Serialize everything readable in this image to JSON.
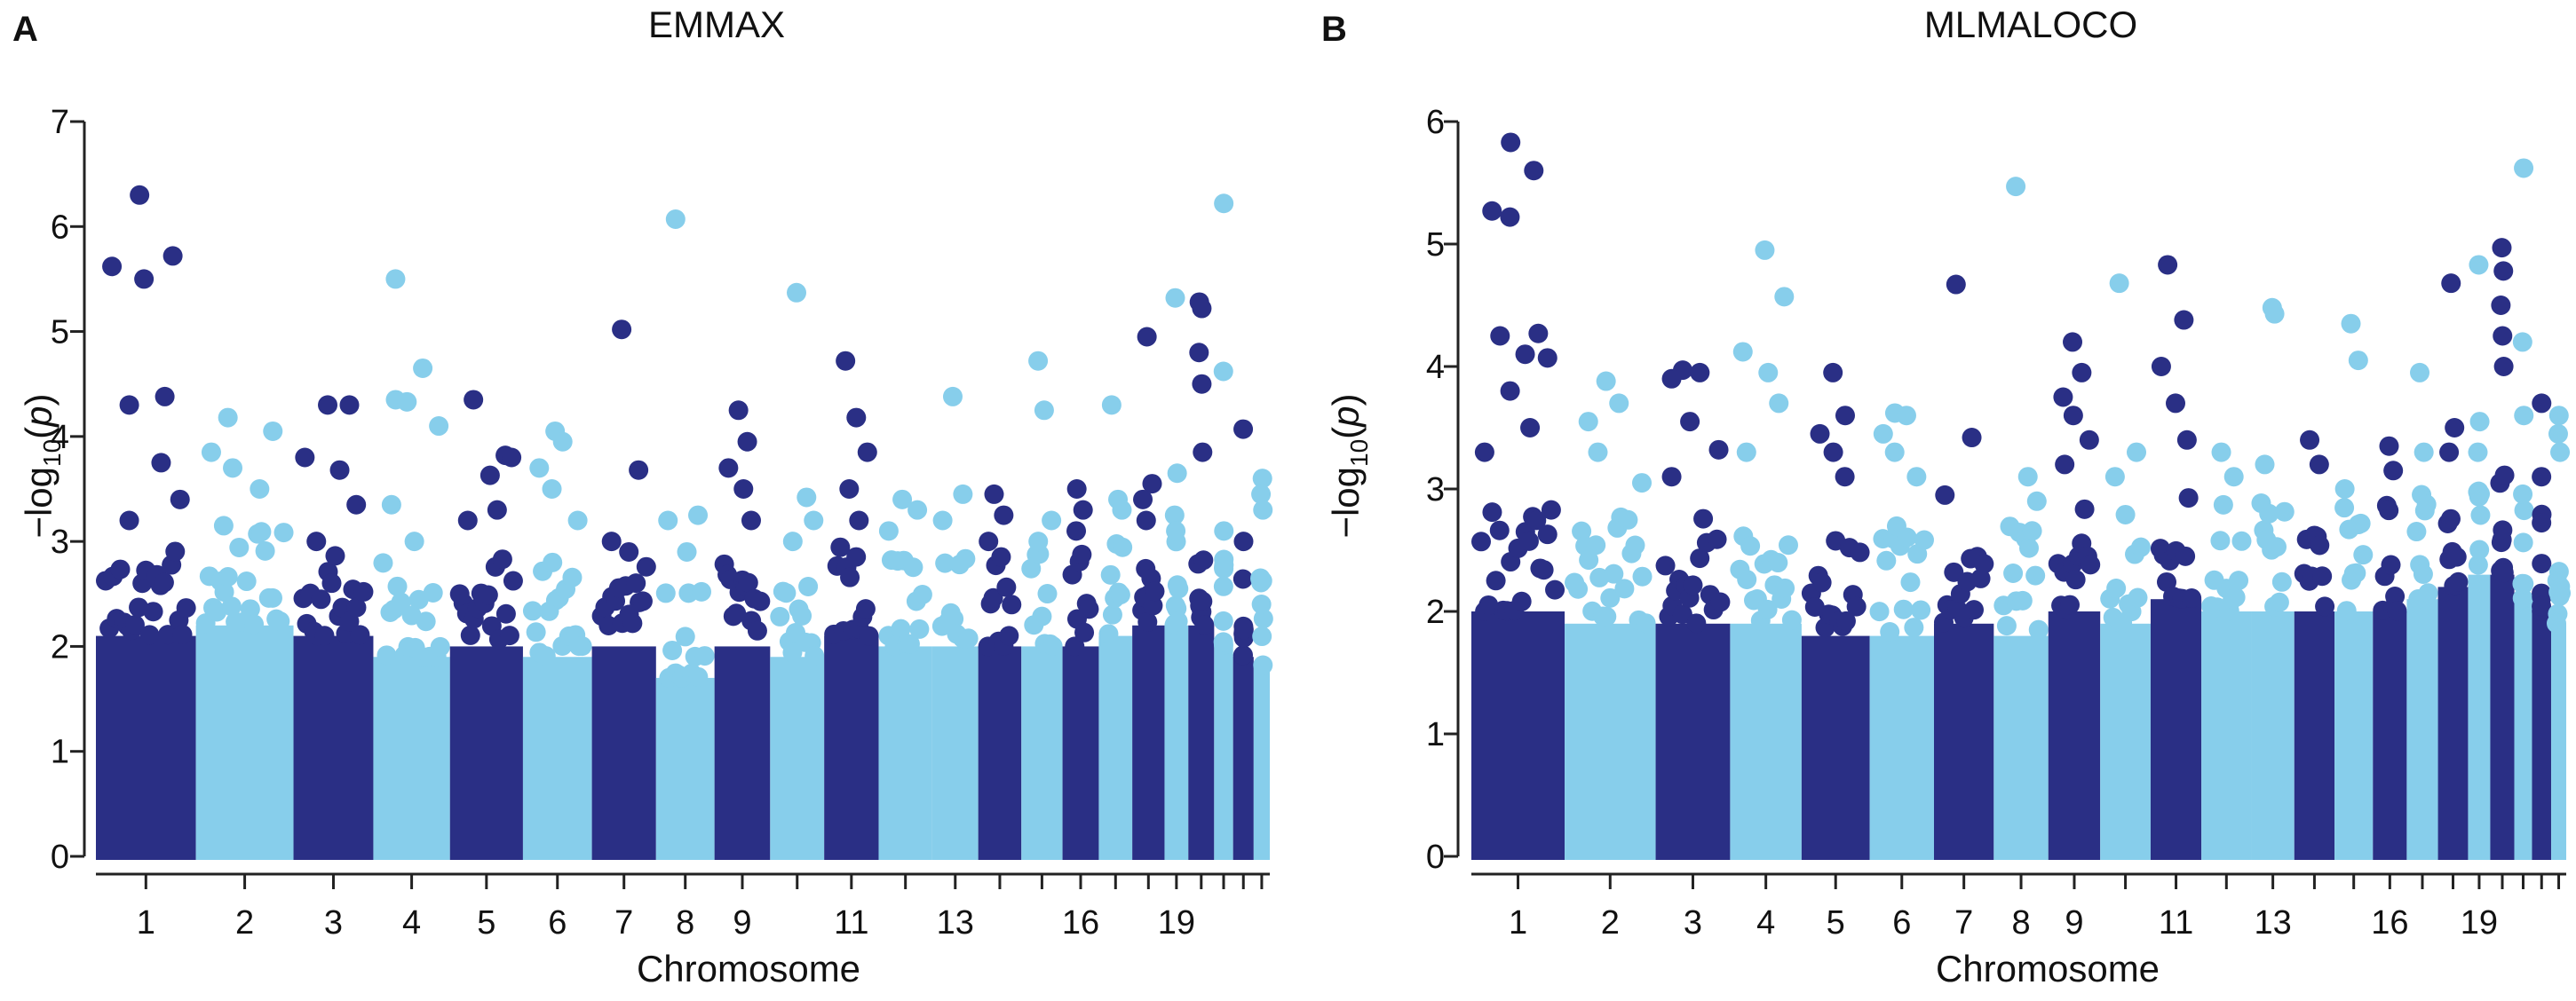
{
  "panels": [
    {
      "letter": "A",
      "title": "EMMAX"
    },
    {
      "letter": "B",
      "title": "MLMALOCO"
    }
  ],
  "colors": {
    "dark": "#2a2f85",
    "light": "#87ceeb",
    "axis": "#222222"
  },
  "chart_data": [
    {
      "type": "scatter",
      "subtype": "manhattan",
      "title": "EMMAX",
      "xlabel": "Chromosome",
      "ylabel": "−log10(p)",
      "ylim": [
        0,
        7
      ],
      "yticks": [
        0,
        1,
        2,
        3,
        4,
        5,
        6,
        7
      ],
      "xtick_labels": [
        "1",
        "2",
        "3",
        "4",
        "5",
        "6",
        "7",
        "8",
        "9",
        "11",
        "13",
        "16",
        "19"
      ],
      "grid": false,
      "legend": "none",
      "chromosomes": [
        {
          "chr": 1,
          "color": "dark",
          "base_max": 2.7,
          "points": [
            6.3,
            5.72,
            5.62,
            5.5,
            4.38,
            4.3,
            3.75,
            3.4,
            3.2
          ]
        },
        {
          "chr": 2,
          "color": "light",
          "base_max": 2.8,
          "points": [
            4.18,
            4.05,
            3.85,
            3.7,
            3.5,
            3.15
          ]
        },
        {
          "chr": 3,
          "color": "dark",
          "base_max": 2.7,
          "points": [
            4.3,
            4.3,
            3.8,
            3.68,
            3.35,
            3.0
          ]
        },
        {
          "chr": 4,
          "color": "light",
          "base_max": 2.5,
          "points": [
            5.5,
            4.65,
            4.35,
            4.33,
            4.1,
            3.35,
            3.0
          ]
        },
        {
          "chr": 5,
          "color": "dark",
          "base_max": 2.6,
          "points": [
            4.35,
            3.82,
            3.8,
            3.63,
            3.3,
            3.2
          ]
        },
        {
          "chr": 6,
          "color": "light",
          "base_max": 2.5,
          "points": [
            4.05,
            3.95,
            3.7,
            3.5,
            3.2
          ]
        },
        {
          "chr": 7,
          "color": "dark",
          "base_max": 2.6,
          "points": [
            5.02,
            3.68,
            3.0,
            2.9
          ]
        },
        {
          "chr": 8,
          "color": "light",
          "base_max": 2.3,
          "points": [
            6.07,
            3.25,
            3.2,
            2.9
          ]
        },
        {
          "chr": 9,
          "color": "dark",
          "base_max": 2.6,
          "points": [
            4.25,
            3.95,
            3.7,
            3.5,
            3.2
          ]
        },
        {
          "chr": 10,
          "color": "light",
          "base_max": 2.5,
          "points": [
            5.37,
            3.42,
            3.2,
            3.0
          ]
        },
        {
          "chr": 11,
          "color": "dark",
          "base_max": 2.7,
          "points": [
            4.72,
            4.18,
            3.85,
            3.5,
            3.2
          ]
        },
        {
          "chr": 12,
          "color": "light",
          "base_max": 2.6,
          "points": [
            3.4,
            3.3,
            3.1
          ]
        },
        {
          "chr": 13,
          "color": "light",
          "base_max": 2.6,
          "points": [
            4.38,
            3.45,
            3.2
          ]
        },
        {
          "chr": 14,
          "color": "dark",
          "base_max": 2.6,
          "points": [
            3.45,
            3.25,
            3.0
          ]
        },
        {
          "chr": 15,
          "color": "light",
          "base_max": 2.6,
          "points": [
            4.72,
            4.25,
            3.2,
            3.0
          ]
        },
        {
          "chr": 16,
          "color": "dark",
          "base_max": 2.6,
          "points": [
            3.5,
            3.3,
            3.1
          ]
        },
        {
          "chr": 17,
          "color": "light",
          "base_max": 2.7,
          "points": [
            4.3,
            3.4,
            3.3
          ]
        },
        {
          "chr": 18,
          "color": "dark",
          "base_max": 2.8,
          "points": [
            4.95,
            3.55,
            3.4,
            3.2
          ]
        },
        {
          "chr": 19,
          "color": "light",
          "base_max": 2.8,
          "points": [
            5.32,
            3.65,
            3.25,
            3.1
          ]
        },
        {
          "chr": 20,
          "color": "dark",
          "base_max": 2.8,
          "points": [
            5.28,
            5.22,
            4.8,
            4.5,
            3.85
          ]
        },
        {
          "chr": 21,
          "color": "light",
          "base_max": 2.6,
          "points": [
            6.22,
            4.62,
            3.1
          ]
        },
        {
          "chr": 22,
          "color": "dark",
          "base_max": 2.5,
          "points": [
            4.07,
            3.0
          ]
        },
        {
          "chr": 23,
          "color": "light",
          "base_max": 2.4,
          "points": [
            3.6,
            3.45,
            3.3
          ]
        }
      ]
    },
    {
      "type": "scatter",
      "subtype": "manhattan",
      "title": "MLMALOCO",
      "xlabel": "Chromosome",
      "ylabel": "−log10(p)",
      "ylim": [
        0,
        6
      ],
      "yticks": [
        0,
        1,
        2,
        3,
        4,
        5,
        6
      ],
      "xtick_labels": [
        "1",
        "2",
        "3",
        "4",
        "5",
        "6",
        "7",
        "8",
        "9",
        "11",
        "13",
        "16",
        "19"
      ],
      "grid": false,
      "legend": "none",
      "chromosomes": [
        {
          "chr": 1,
          "color": "dark",
          "base_max": 2.6,
          "points": [
            5.83,
            5.6,
            5.27,
            5.22,
            4.27,
            4.25,
            4.1,
            4.07,
            3.8,
            3.5,
            3.3
          ]
        },
        {
          "chr": 2,
          "color": "light",
          "base_max": 2.5,
          "points": [
            3.88,
            3.7,
            3.55,
            3.3,
            3.05
          ]
        },
        {
          "chr": 3,
          "color": "dark",
          "base_max": 2.5,
          "points": [
            3.97,
            3.95,
            3.9,
            3.55,
            3.32,
            3.1
          ]
        },
        {
          "chr": 4,
          "color": "light",
          "base_max": 2.5,
          "points": [
            4.95,
            4.57,
            4.12,
            3.95,
            3.7,
            3.3
          ]
        },
        {
          "chr": 5,
          "color": "dark",
          "base_max": 2.4,
          "points": [
            3.95,
            3.6,
            3.45,
            3.3,
            3.1
          ]
        },
        {
          "chr": 6,
          "color": "light",
          "base_max": 2.4,
          "points": [
            3.62,
            3.6,
            3.45,
            3.3,
            3.1
          ]
        },
        {
          "chr": 7,
          "color": "dark",
          "base_max": 2.5,
          "points": [
            4.67,
            3.42,
            2.95
          ]
        },
        {
          "chr": 8,
          "color": "light",
          "base_max": 2.4,
          "points": [
            5.47,
            3.1,
            2.9
          ]
        },
        {
          "chr": 9,
          "color": "dark",
          "base_max": 2.6,
          "points": [
            4.2,
            3.95,
            3.75,
            3.6,
            3.4,
            3.2
          ]
        },
        {
          "chr": 10,
          "color": "light",
          "base_max": 2.5,
          "points": [
            4.68,
            3.3,
            3.1
          ]
        },
        {
          "chr": 11,
          "color": "dark",
          "base_max": 2.7,
          "points": [
            4.83,
            4.38,
            4.0,
            3.7,
            3.4
          ]
        },
        {
          "chr": 12,
          "color": "light",
          "base_max": 2.6,
          "points": [
            3.3,
            3.1
          ]
        },
        {
          "chr": 13,
          "color": "light",
          "base_max": 2.6,
          "points": [
            4.48,
            4.43,
            3.2
          ]
        },
        {
          "chr": 14,
          "color": "dark",
          "base_max": 2.6,
          "points": [
            3.4,
            3.2
          ]
        },
        {
          "chr": 15,
          "color": "light",
          "base_max": 2.6,
          "points": [
            4.35,
            4.05,
            3.0
          ]
        },
        {
          "chr": 16,
          "color": "dark",
          "base_max": 2.6,
          "points": [
            3.35,
            3.15
          ]
        },
        {
          "chr": 17,
          "color": "light",
          "base_max": 2.7,
          "points": [
            3.95,
            3.3
          ]
        },
        {
          "chr": 18,
          "color": "dark",
          "base_max": 2.8,
          "points": [
            4.68,
            3.5,
            3.3
          ]
        },
        {
          "chr": 19,
          "color": "light",
          "base_max": 2.9,
          "points": [
            4.83,
            3.55,
            3.3
          ]
        },
        {
          "chr": 20,
          "color": "dark",
          "base_max": 2.9,
          "points": [
            4.97,
            4.78,
            4.5,
            4.25,
            4.0
          ]
        },
        {
          "chr": 21,
          "color": "light",
          "base_max": 2.7,
          "points": [
            5.62,
            4.2,
            3.6
          ]
        },
        {
          "chr": 22,
          "color": "dark",
          "base_max": 2.6,
          "points": [
            3.7,
            3.1
          ]
        },
        {
          "chr": 23,
          "color": "light",
          "base_max": 2.5,
          "points": [
            3.6,
            3.45,
            3.3
          ]
        }
      ]
    }
  ]
}
